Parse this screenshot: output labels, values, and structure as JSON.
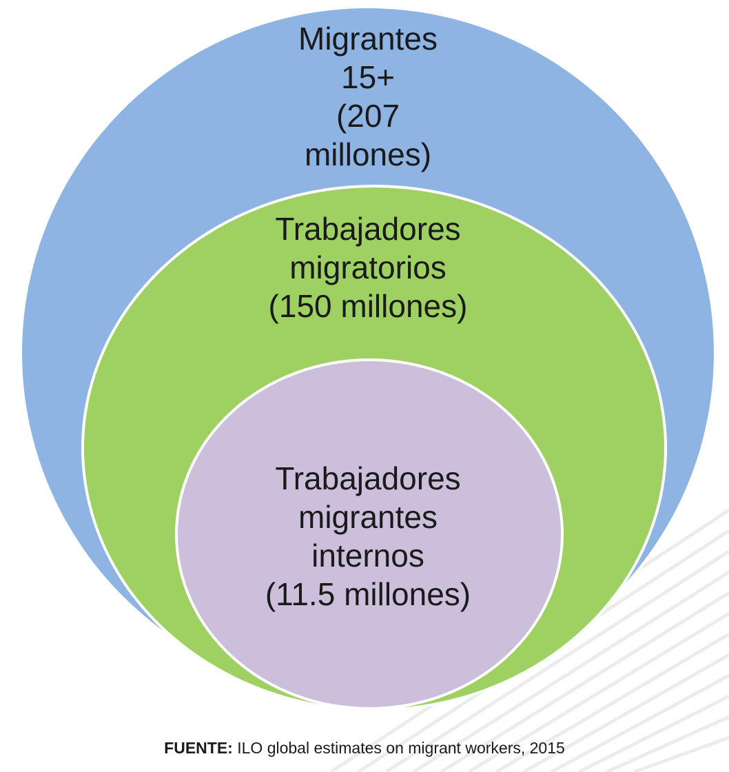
{
  "diagram": {
    "type": "nested-circles",
    "colors": {
      "outer_fill": "#8eb4e3",
      "middle_fill": "#9fd162",
      "inner_fill": "#cbbfdc",
      "border": "#ffffff"
    },
    "outer": {
      "lines": [
        "Migrantes",
        "15+",
        "(207",
        "millones)"
      ]
    },
    "middle": {
      "lines": [
        "Trabajadores",
        "migratorios",
        "(150 millones)"
      ]
    },
    "inner": {
      "lines": [
        "Trabajadores",
        "migrantes",
        "internos",
        "(11.5 millones)"
      ]
    }
  },
  "source": {
    "key": "FUENTE:",
    "text": "ILO global estimates on migrant workers, 2015"
  }
}
